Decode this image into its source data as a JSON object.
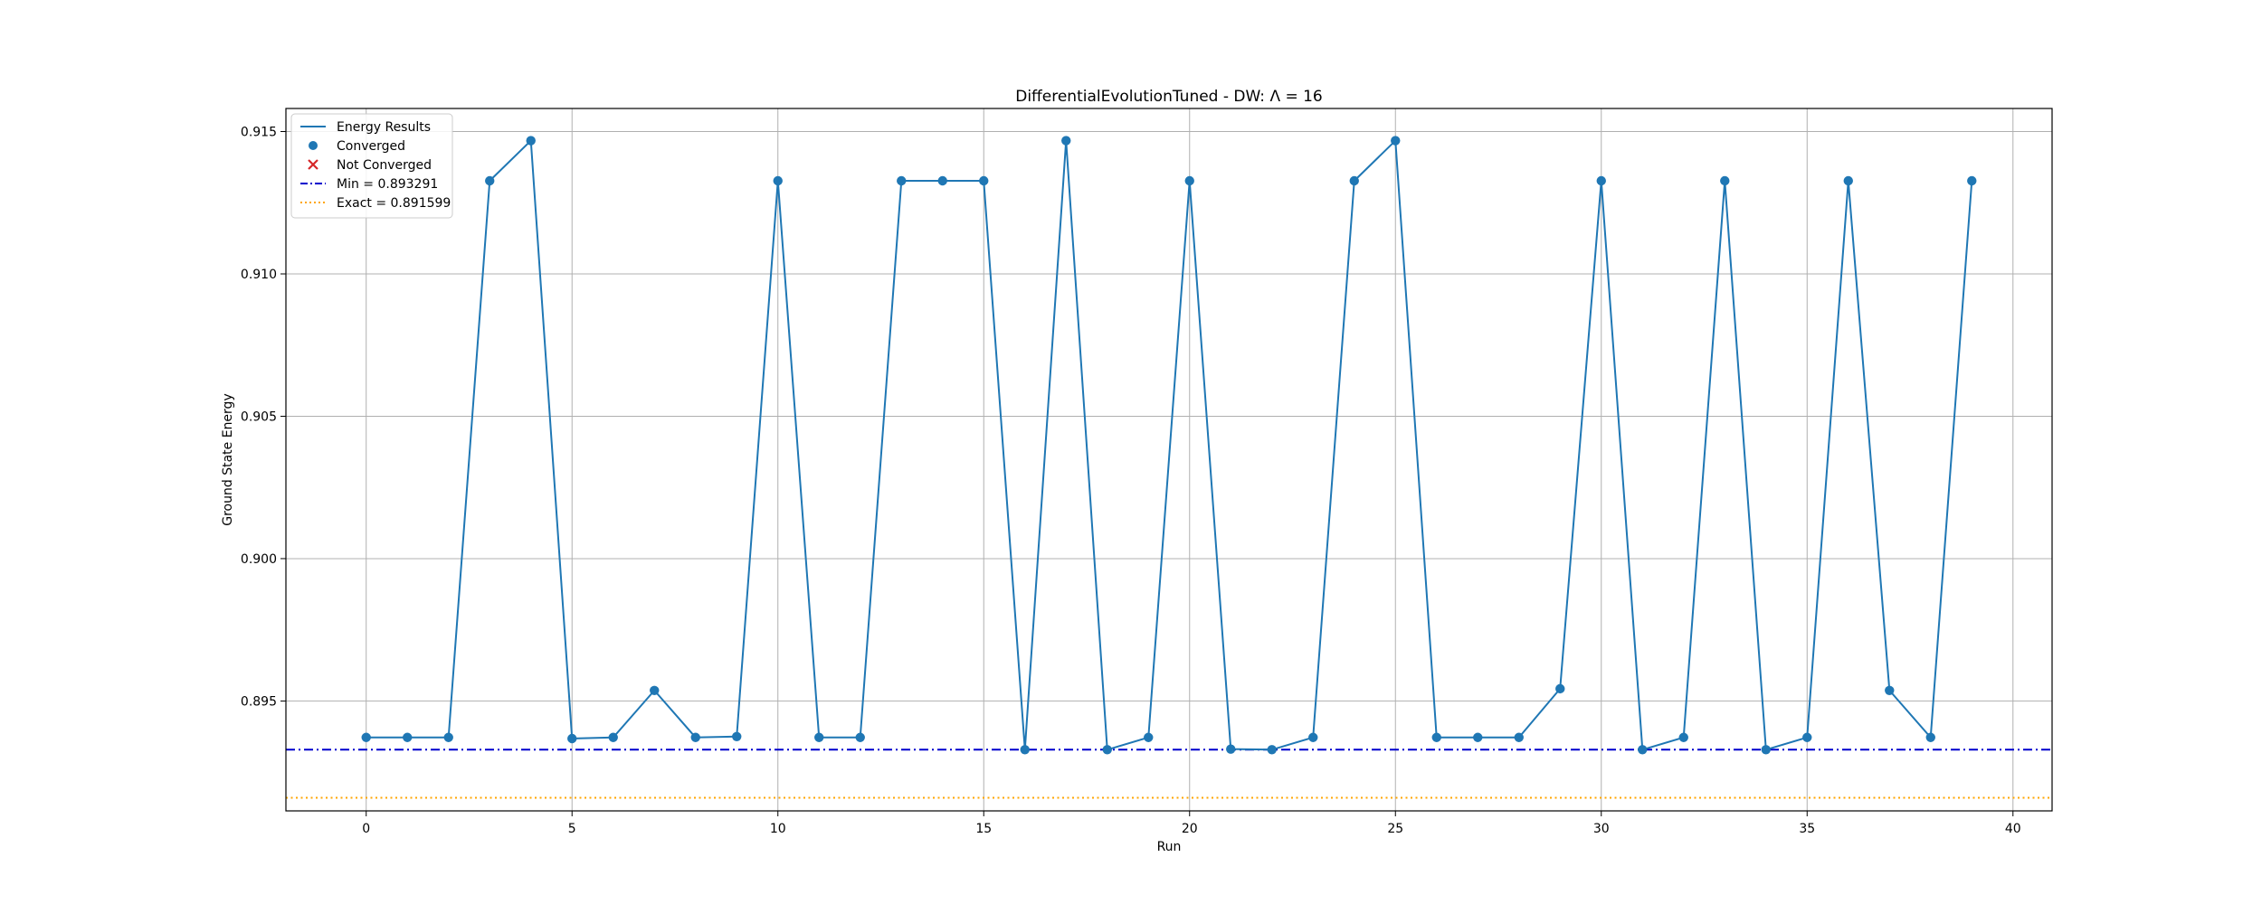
{
  "chart_data": {
    "type": "line",
    "title": "DifferentialEvolutionTuned - DW: Λ = 16",
    "xlabel": "Run",
    "ylabel": "Ground State Energy",
    "xlim": [
      -1.95,
      40.95
    ],
    "ylim": [
      0.89114,
      0.91581
    ],
    "xticks": [
      0,
      5,
      10,
      15,
      20,
      25,
      30,
      35,
      40
    ],
    "xtick_labels": [
      "0",
      "5",
      "10",
      "15",
      "20",
      "25",
      "30",
      "35",
      "40"
    ],
    "yticks": [
      0.895,
      0.9,
      0.905,
      0.91,
      0.915
    ],
    "ytick_labels": [
      "0.895",
      "0.900",
      "0.905",
      "0.910",
      "0.915"
    ],
    "grid": true,
    "legend_position": "upper-left",
    "series": [
      {
        "name": "Energy Results",
        "color": "#1f77b4",
        "x": [
          0,
          1,
          2,
          3,
          4,
          5,
          6,
          7,
          8,
          9,
          10,
          11,
          12,
          13,
          14,
          15,
          16,
          17,
          18,
          19,
          20,
          21,
          22,
          23,
          24,
          25,
          26,
          27,
          28,
          29,
          30,
          31,
          32,
          33,
          34,
          35,
          36,
          37,
          38,
          39
        ],
        "y": [
          0.89372,
          0.89372,
          0.89372,
          0.91327,
          0.91468,
          0.89368,
          0.89372,
          0.89537,
          0.89372,
          0.89375,
          0.91327,
          0.89372,
          0.89372,
          0.91327,
          0.91327,
          0.91327,
          0.89329,
          0.91468,
          0.89329,
          0.89372,
          0.91327,
          0.89331,
          0.89329,
          0.89372,
          0.91327,
          0.91468,
          0.89372,
          0.89372,
          0.89372,
          0.89543,
          0.91327,
          0.89329,
          0.89372,
          0.91327,
          0.89329,
          0.89372,
          0.91327,
          0.89537,
          0.89372,
          0.91327
        ]
      }
    ],
    "legend": [
      {
        "label": "Energy Results",
        "kind": "line",
        "color": "#1f77b4"
      },
      {
        "label": "Converged",
        "kind": "dot",
        "color": "#1f77b4"
      },
      {
        "label": "Not Converged",
        "kind": "cross",
        "color": "#d62728"
      },
      {
        "label": "Min = 0.893291",
        "kind": "dashdot",
        "color": "#0000cd"
      },
      {
        "label": "Exact = 0.891599",
        "kind": "dotted",
        "color": "#ffa500"
      }
    ],
    "reference_lines": [
      {
        "label": "Min = 0.893291",
        "y": 0.893291,
        "color": "#0000cd",
        "style": "dashdot"
      },
      {
        "label": "Exact = 0.891599",
        "y": 0.891599,
        "color": "#ffa500",
        "style": "dotted"
      }
    ]
  }
}
